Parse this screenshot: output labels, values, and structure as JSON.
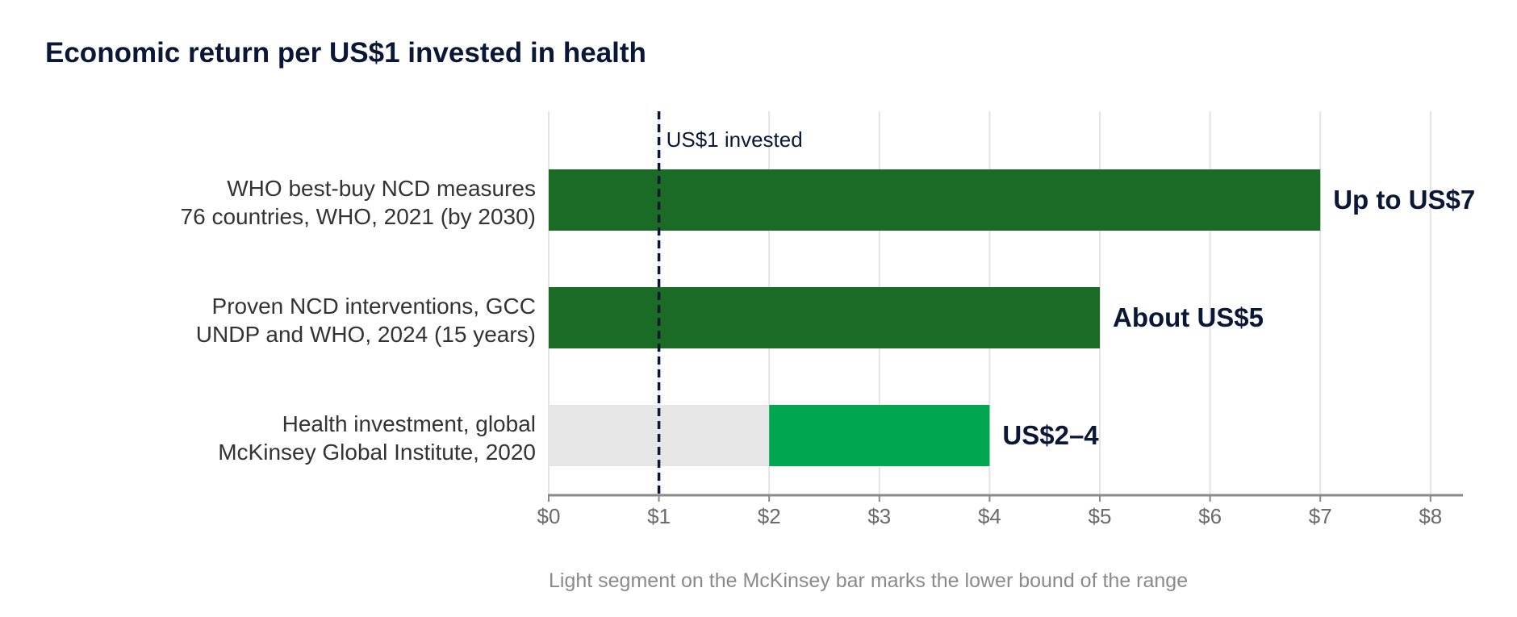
{
  "chart_data": {
    "type": "bar",
    "orientation": "horizontal",
    "title": "Economic return per US$1 invested in health",
    "categories": [
      [
        "WHO best-buy NCD measures",
        "76 countries, WHO, 2021 (by 2030)"
      ],
      [
        "Proven NCD interventions, GCC",
        "UNDP and WHO, 2024 (15 years)"
      ],
      [
        "Health investment, global",
        "McKinsey Global Institute, 2020"
      ]
    ],
    "bars": [
      {
        "start": 0,
        "end": 7,
        "color": "#1a6b25",
        "label": "Up to US$7"
      },
      {
        "start": 0,
        "end": 5,
        "color": "#1a6b25",
        "label": "About US$5"
      },
      {
        "start": 0,
        "end": 4,
        "color": "#00a650",
        "label": "US$2–4",
        "lower_bound": 2,
        "lower_color": "#e6e6e6"
      }
    ],
    "xlim": [
      0,
      8.3
    ],
    "xticks": [
      0,
      1,
      2,
      3,
      4,
      5,
      6,
      7,
      8
    ],
    "xtick_labels": [
      "$0",
      "$1",
      "$2",
      "$3",
      "$4",
      "$5",
      "$6",
      "$7",
      "$8"
    ],
    "reference_line": {
      "x": 1,
      "label": "US$1 invested",
      "style": "dashed",
      "color": "#0b1736"
    },
    "grid": "vertical",
    "footnote": "Light segment on the McKinsey bar marks the lower bound of the range"
  }
}
